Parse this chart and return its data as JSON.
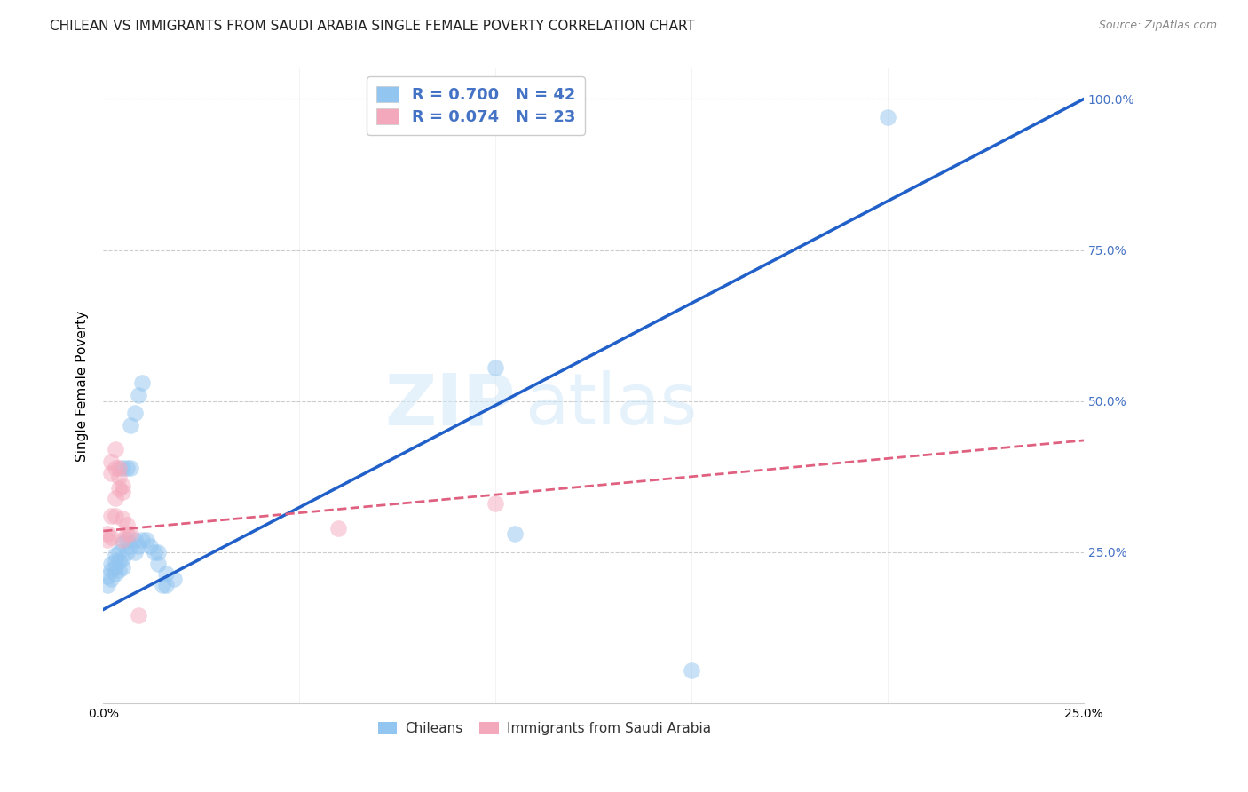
{
  "title": "CHILEAN VS IMMIGRANTS FROM SAUDI ARABIA SINGLE FEMALE POVERTY CORRELATION CHART",
  "source": "Source: ZipAtlas.com",
  "ylabel": "Single Female Poverty",
  "watermark": "ZIPatlas",
  "xlim": [
    0.0,
    0.25
  ],
  "ylim": [
    0.0,
    1.05
  ],
  "xtick_positions": [
    0.0,
    0.05,
    0.1,
    0.15,
    0.2,
    0.25
  ],
  "xtick_labels": [
    "0.0%",
    "",
    "",
    "",
    "",
    "25.0%"
  ],
  "ytick_positions": [
    0.0,
    0.25,
    0.5,
    0.75,
    1.0
  ],
  "ytick_labels_right": [
    "",
    "25.0%",
    "50.0%",
    "75.0%",
    "100.0%"
  ],
  "legend_labels_bottom": [
    "Chileans",
    "Immigrants from Saudi Arabia"
  ],
  "chilean_points": [
    [
      0.001,
      0.195
    ],
    [
      0.001,
      0.21
    ],
    [
      0.002,
      0.205
    ],
    [
      0.002,
      0.22
    ],
    [
      0.002,
      0.23
    ],
    [
      0.003,
      0.215
    ],
    [
      0.003,
      0.225
    ],
    [
      0.003,
      0.235
    ],
    [
      0.003,
      0.245
    ],
    [
      0.004,
      0.22
    ],
    [
      0.004,
      0.235
    ],
    [
      0.004,
      0.25
    ],
    [
      0.005,
      0.225
    ],
    [
      0.005,
      0.24
    ],
    [
      0.005,
      0.265
    ],
    [
      0.005,
      0.39
    ],
    [
      0.006,
      0.25
    ],
    [
      0.006,
      0.27
    ],
    [
      0.006,
      0.39
    ],
    [
      0.007,
      0.26
    ],
    [
      0.007,
      0.39
    ],
    [
      0.007,
      0.46
    ],
    [
      0.008,
      0.25
    ],
    [
      0.008,
      0.27
    ],
    [
      0.008,
      0.48
    ],
    [
      0.009,
      0.26
    ],
    [
      0.009,
      0.51
    ],
    [
      0.01,
      0.27
    ],
    [
      0.01,
      0.53
    ],
    [
      0.011,
      0.27
    ],
    [
      0.012,
      0.26
    ],
    [
      0.013,
      0.25
    ],
    [
      0.014,
      0.23
    ],
    [
      0.014,
      0.25
    ],
    [
      0.015,
      0.195
    ],
    [
      0.016,
      0.195
    ],
    [
      0.016,
      0.215
    ],
    [
      0.018,
      0.205
    ],
    [
      0.1,
      0.555
    ],
    [
      0.105,
      0.28
    ],
    [
      0.15,
      0.055
    ],
    [
      0.2,
      0.97
    ]
  ],
  "saudi_points": [
    [
      0.001,
      0.27
    ],
    [
      0.001,
      0.28
    ],
    [
      0.002,
      0.275
    ],
    [
      0.002,
      0.31
    ],
    [
      0.002,
      0.38
    ],
    [
      0.002,
      0.4
    ],
    [
      0.003,
      0.31
    ],
    [
      0.003,
      0.34
    ],
    [
      0.003,
      0.39
    ],
    [
      0.003,
      0.42
    ],
    [
      0.004,
      0.355
    ],
    [
      0.004,
      0.375
    ],
    [
      0.004,
      0.39
    ],
    [
      0.005,
      0.35
    ],
    [
      0.005,
      0.36
    ],
    [
      0.005,
      0.27
    ],
    [
      0.005,
      0.305
    ],
    [
      0.006,
      0.28
    ],
    [
      0.006,
      0.295
    ],
    [
      0.007,
      0.28
    ],
    [
      0.009,
      0.145
    ],
    [
      0.06,
      0.29
    ],
    [
      0.1,
      0.33
    ]
  ],
  "title_fontsize": 11,
  "source_fontsize": 9,
  "axis_label_fontsize": 11,
  "tick_fontsize": 10,
  "scatter_size": 180,
  "scatter_alpha": 0.5,
  "chilean_color": "#92c5f0",
  "saudi_color": "#f4a8bc",
  "chilean_line_color": "#2060c8",
  "saudi_line_color": "#e06080",
  "background_color": "#ffffff",
  "grid_color": "#cccccc",
  "R_chilean": 0.7,
  "N_chilean": 42,
  "R_saudi": 0.074,
  "N_saudi": 23
}
